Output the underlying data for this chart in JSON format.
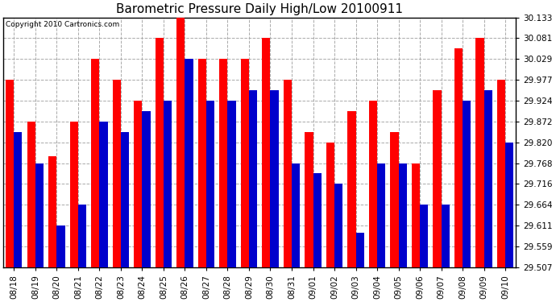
{
  "title": "Barometric Pressure Daily High/Low 20100911",
  "copyright": "Copyright 2010 Cartronics.com",
  "categories": [
    "08/18",
    "08/19",
    "08/20",
    "08/21",
    "08/22",
    "08/23",
    "08/24",
    "08/25",
    "08/26",
    "08/27",
    "08/28",
    "08/29",
    "08/30",
    "08/31",
    "09/01",
    "09/02",
    "09/03",
    "09/04",
    "09/05",
    "09/06",
    "09/07",
    "09/08",
    "09/09",
    "09/10"
  ],
  "highs": [
    29.977,
    29.872,
    29.785,
    29.872,
    30.029,
    29.977,
    29.924,
    30.081,
    30.133,
    30.029,
    30.029,
    30.029,
    30.081,
    29.977,
    29.846,
    29.82,
    29.898,
    29.924,
    29.846,
    29.768,
    29.951,
    30.055,
    30.081,
    29.977
  ],
  "lows": [
    29.846,
    29.768,
    29.611,
    29.664,
    29.872,
    29.846,
    29.898,
    29.924,
    30.029,
    29.924,
    29.924,
    29.95,
    29.95,
    29.768,
    29.742,
    29.716,
    29.594,
    29.768,
    29.768,
    29.664,
    29.664,
    29.924,
    29.95,
    29.82
  ],
  "high_color": "#ff0000",
  "low_color": "#0000cc",
  "bg_color": "#ffffff",
  "plot_bg_color": "#ffffff",
  "grid_color": "#aaaaaa",
  "ymin": 29.507,
  "ymax": 30.133,
  "yticks": [
    29.507,
    29.559,
    29.611,
    29.664,
    29.716,
    29.768,
    29.82,
    29.872,
    29.924,
    29.977,
    30.029,
    30.081,
    30.133
  ]
}
